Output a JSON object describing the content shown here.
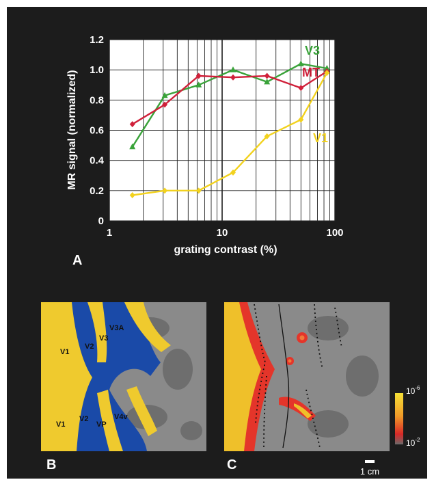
{
  "chart_data": {
    "type": "line",
    "panel_label": "A",
    "xlabel": "grating contrast (%)",
    "ylabel": "MR signal (normalized)",
    "x_scale": "log",
    "xlim": [
      1,
      100
    ],
    "ylim": [
      0,
      1.2
    ],
    "x_tick_labels": [
      "1",
      "10",
      "100"
    ],
    "y_tick_labels": [
      "0",
      "0.2",
      "0.4",
      "0.6",
      "0.8",
      "1.0",
      "1.2"
    ],
    "grid": true,
    "series": [
      {
        "name": "V3",
        "color": "#3aa33a",
        "marker": "triangle",
        "x": [
          1.6,
          3.1,
          6.2,
          12.5,
          25,
          50,
          85
        ],
        "y": [
          0.49,
          0.83,
          0.9,
          1.0,
          0.92,
          1.04,
          1.01
        ]
      },
      {
        "name": "MT",
        "color": "#d0203a",
        "marker": "diamond",
        "x": [
          1.6,
          3.1,
          6.2,
          12.5,
          25,
          50,
          85
        ],
        "y": [
          0.64,
          0.77,
          0.96,
          0.95,
          0.96,
          0.88,
          0.99
        ]
      },
      {
        "name": "V1",
        "color": "#f2d21e",
        "marker": "diamond",
        "x": [
          1.6,
          3.1,
          6.2,
          12.5,
          25,
          50,
          85
        ],
        "y": [
          0.17,
          0.2,
          0.2,
          0.32,
          0.56,
          0.67,
          0.98
        ]
      }
    ]
  },
  "panel_b": {
    "label": "B",
    "areas": [
      "V1",
      "V2",
      "V3",
      "V3A",
      "V1",
      "V2",
      "VP",
      "V4v"
    ]
  },
  "panel_c": {
    "label": "C",
    "colorbar_top": "10",
    "colorbar_top_exp": "-6",
    "colorbar_bottom": "10",
    "colorbar_bottom_exp": "-2",
    "scale_bar": "1 cm"
  },
  "colors": {
    "background": "#1c1c1c",
    "gray_cortex": "#8a8a8a",
    "yellow": "#efca2e",
    "blue": "#1a4aa8"
  }
}
